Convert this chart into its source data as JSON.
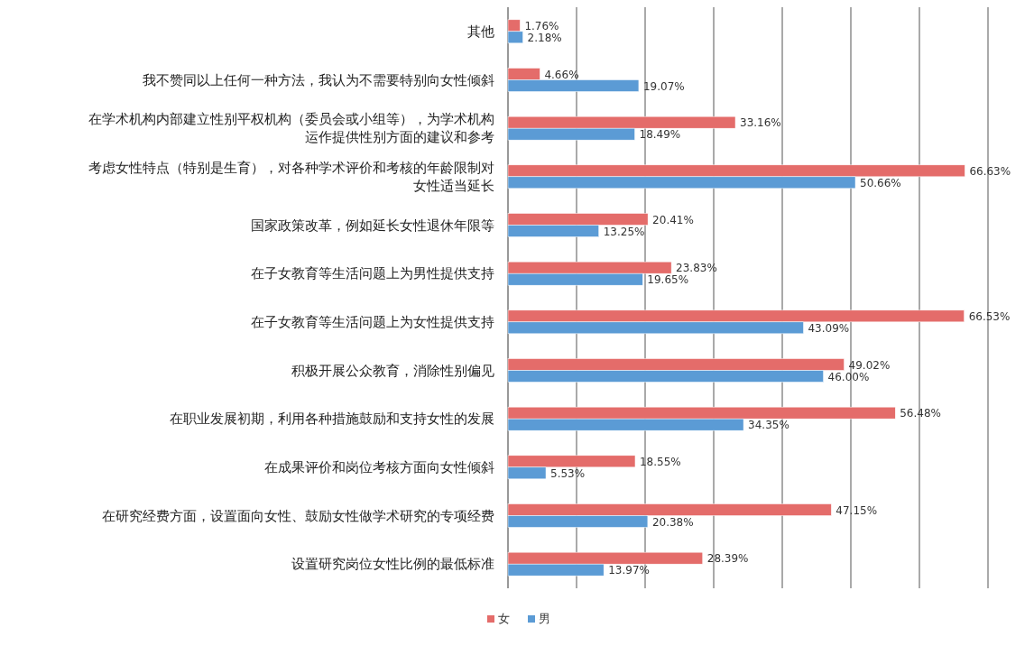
{
  "chart_data": {
    "type": "bar",
    "orientation": "horizontal",
    "categories": [
      "其他",
      "我不赞同以上任何一种方法，我认为不需要特别向女性倾斜",
      "在学术机构内部建立性别平权机构（委员会或小组等），为学术机构运作提供性别方面的建议和参考",
      "考虑女性特点（特别是生育），对各种学术评价和考核的年龄限制对女性适当延长",
      "国家政策改革，例如延长女性退休年限等",
      "在子女教育等生活问题上为男性提供支持",
      "在子女教育等生活问题上为女性提供支持",
      "积极开展公众教育，消除性别偏见",
      "在职业发展初期，利用各种措施鼓励和支持女性的发展",
      "在成果评价和岗位考核方面向女性倾斜",
      "在研究经费方面，设置面向女性、鼓励女性做学术研究的专项经费",
      "设置研究岗位女性比例的最低标准"
    ],
    "series": [
      {
        "name": "女",
        "color": "#e46c6a",
        "values": [
          1.76,
          4.66,
          33.16,
          66.63,
          20.41,
          23.83,
          66.53,
          49.02,
          56.48,
          18.55,
          47.15,
          28.39
        ],
        "value_labels": [
          "1.76%",
          "4.66%",
          "33.16%",
          "66.63%",
          "20.41%",
          "23.83%",
          "66.53%",
          "49.02%",
          "56.48%",
          "18.55%",
          "47.15%",
          "28.39%"
        ]
      },
      {
        "name": "男",
        "color": "#5b9bd5",
        "values": [
          2.18,
          19.07,
          18.49,
          50.66,
          13.25,
          19.65,
          43.09,
          46.0,
          34.35,
          5.53,
          20.38,
          13.97
        ],
        "value_labels": [
          "2.18%",
          "19.07%",
          "18.49%",
          "50.66%",
          "13.25%",
          "19.65%",
          "43.09%",
          "46.00%",
          "34.35%",
          "5.53%",
          "20.38%",
          "13.97%"
        ]
      }
    ],
    "xlim": [
      0,
      70
    ],
    "xticks": [
      {
        "value": 0,
        "label": null
      },
      {
        "value": 10,
        "label": null
      },
      {
        "value": 20,
        "label": null
      },
      {
        "value": 30,
        "label": null
      },
      {
        "value": 40,
        "label": null
      },
      {
        "value": 50,
        "label": null
      },
      {
        "value": 60,
        "label": null
      },
      {
        "value": 70,
        "label": null
      }
    ],
    "grid": "x",
    "legend": "bottom"
  }
}
